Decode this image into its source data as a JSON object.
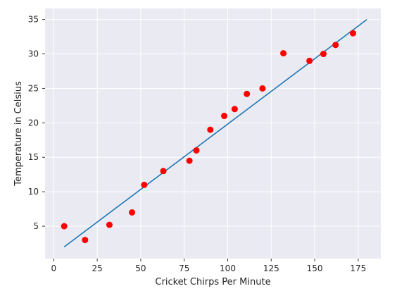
{
  "chart_data": {
    "type": "scatter",
    "title": "",
    "xlabel": "Cricket Chirps Per Minute",
    "ylabel": "Temperature in Celsius",
    "xlim": [
      -5,
      188
    ],
    "ylim": [
      0.3,
      36.6
    ],
    "xticks": [
      0,
      25,
      50,
      75,
      100,
      125,
      150,
      175
    ],
    "yticks": [
      5,
      10,
      15,
      20,
      25,
      30,
      35
    ],
    "grid": true,
    "background": "#eaeaf2",
    "grid_color": "#ffffff",
    "points": {
      "color": "#ff0000",
      "x": [
        6,
        18,
        32,
        45,
        52,
        63,
        78,
        82,
        90,
        98,
        104,
        111,
        120,
        132,
        147,
        155,
        162,
        172
      ],
      "y": [
        5,
        3,
        5.2,
        7,
        11,
        13,
        14.5,
        16,
        19,
        21,
        22,
        24.2,
        25,
        30.1,
        29,
        30,
        31.3,
        33
      ]
    },
    "fit_line": {
      "color": "#1f77b4",
      "x": [
        6,
        180
      ],
      "y": [
        2,
        35
      ]
    }
  }
}
